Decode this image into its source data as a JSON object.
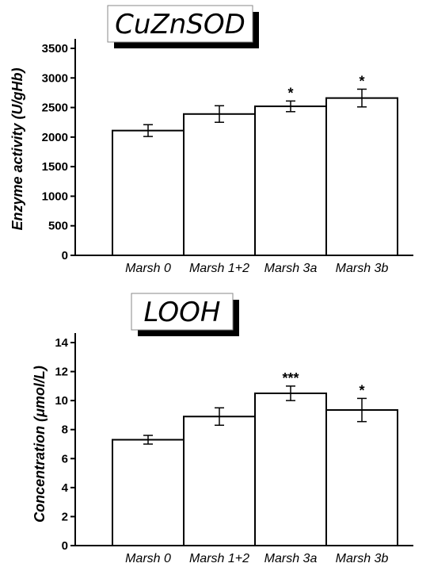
{
  "chart_data": [
    {
      "type": "bar",
      "title": "CuZnSOD",
      "ylabel": "Enzyme activity (U/gHb)",
      "categories": [
        "Marsh 0",
        "Marsh 1+2",
        "Marsh 3a",
        "Marsh 3b"
      ],
      "values": [
        2110,
        2390,
        2520,
        2660
      ],
      "errors": [
        100,
        140,
        90,
        150
      ],
      "significance": [
        "",
        "",
        "*",
        "*"
      ],
      "ylim": [
        0,
        3500
      ],
      "yticks": [
        0,
        500,
        1000,
        1500,
        2000,
        2500,
        3000,
        3500
      ]
    },
    {
      "type": "bar",
      "title": "LOOH",
      "ylabel": "Concentration (μmol/L)",
      "categories": [
        "Marsh 0",
        "Marsh 1+2",
        "Marsh 3a",
        "Marsh 3b"
      ],
      "values": [
        7.3,
        8.9,
        10.5,
        9.35
      ],
      "errors": [
        0.3,
        0.6,
        0.5,
        0.8
      ],
      "significance": [
        "",
        "",
        "***",
        "*"
      ],
      "ylim": [
        0,
        14
      ],
      "yticks": [
        0,
        2,
        4,
        6,
        8,
        10,
        12,
        14
      ]
    }
  ]
}
